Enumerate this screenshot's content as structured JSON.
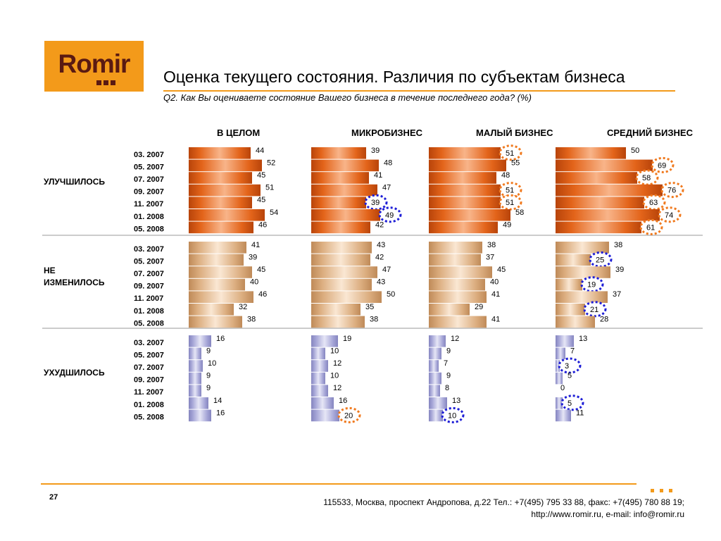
{
  "logo": {
    "text": "Romir"
  },
  "slide": {
    "title": "Оценка текущего состояния. Различия по субъектам бизнеса",
    "subtitle": "Q2. Как Вы оцениваете состояние Вашего бизнеса в течение последнего года? (%)",
    "page_number": "27",
    "address_line1": "115533, Москва, проспект Андропова, д.22   Тел.: +7(495) 795 33 88, факс: +7(495) 780 88 19;",
    "address_line2": "http://www.romir.ru, e-mail: info@romir.ru"
  },
  "colors": {
    "improved": "#d9570e",
    "unchanged": "#d9a877",
    "worsened": "#9a9ad0",
    "highlight_higher": "#f07a1f",
    "highlight_lower": "#1e1ed6",
    "brand": "#f39a1a"
  },
  "chart_data": {
    "type": "bar",
    "orientation": "horizontal",
    "columns": [
      "В ЦЕЛОМ",
      "МИКРОБИЗНЕС",
      "МАЛЫЙ БИЗНЕС",
      "СРЕДНИЙ БИЗНЕС"
    ],
    "dates": [
      "03. 2007",
      "05. 2007",
      "07. 2007",
      "09. 2007",
      "11. 2007",
      "01. 2008",
      "05. 2008"
    ],
    "groups": [
      {
        "label": "УЛУЧШИЛОСЬ",
        "color_key": "improved",
        "values": [
          [
            44,
            52,
            45,
            51,
            45,
            54,
            46
          ],
          [
            39,
            48,
            41,
            47,
            39,
            49,
            42
          ],
          [
            51,
            55,
            48,
            51,
            51,
            58,
            49
          ],
          [
            50,
            69,
            58,
            76,
            63,
            74,
            61
          ]
        ]
      },
      {
        "label": "НЕ ИЗМЕНИЛОСЬ",
        "color_key": "unchanged",
        "values": [
          [
            41,
            39,
            45,
            40,
            46,
            32,
            38
          ],
          [
            43,
            42,
            47,
            43,
            50,
            35,
            38
          ],
          [
            38,
            37,
            45,
            40,
            41,
            29,
            41
          ],
          [
            38,
            25,
            39,
            19,
            37,
            21,
            28
          ]
        ]
      },
      {
        "label": "УХУДШИЛОСЬ",
        "color_key": "worsened",
        "values": [
          [
            16,
            9,
            10,
            9,
            9,
            14,
            16
          ],
          [
            19,
            10,
            12,
            10,
            12,
            16,
            20
          ],
          [
            12,
            9,
            7,
            9,
            8,
            13,
            10
          ],
          [
            13,
            7,
            3,
            5,
            0,
            5,
            11
          ]
        ]
      }
    ],
    "highlights": [
      {
        "group": 0,
        "column": 1,
        "row": 4,
        "kind": "lower"
      },
      {
        "group": 0,
        "column": 1,
        "row": 5,
        "kind": "lower"
      },
      {
        "group": 0,
        "column": 2,
        "row": 0,
        "kind": "higher"
      },
      {
        "group": 0,
        "column": 2,
        "row": 3,
        "kind": "higher"
      },
      {
        "group": 0,
        "column": 2,
        "row": 4,
        "kind": "higher"
      },
      {
        "group": 0,
        "column": 3,
        "row": 1,
        "kind": "higher"
      },
      {
        "group": 0,
        "column": 3,
        "row": 2,
        "kind": "higher"
      },
      {
        "group": 0,
        "column": 3,
        "row": 3,
        "kind": "higher"
      },
      {
        "group": 0,
        "column": 3,
        "row": 4,
        "kind": "higher"
      },
      {
        "group": 0,
        "column": 3,
        "row": 5,
        "kind": "higher"
      },
      {
        "group": 0,
        "column": 3,
        "row": 6,
        "kind": "higher"
      },
      {
        "group": 1,
        "column": 3,
        "row": 1,
        "kind": "lower"
      },
      {
        "group": 1,
        "column": 3,
        "row": 3,
        "kind": "lower"
      },
      {
        "group": 1,
        "column": 3,
        "row": 5,
        "kind": "lower"
      },
      {
        "group": 2,
        "column": 1,
        "row": 6,
        "kind": "higher"
      },
      {
        "group": 2,
        "column": 2,
        "row": 6,
        "kind": "lower"
      },
      {
        "group": 2,
        "column": 3,
        "row": 2,
        "kind": "lower"
      },
      {
        "group": 2,
        "column": 3,
        "row": 5,
        "kind": "lower"
      }
    ]
  }
}
